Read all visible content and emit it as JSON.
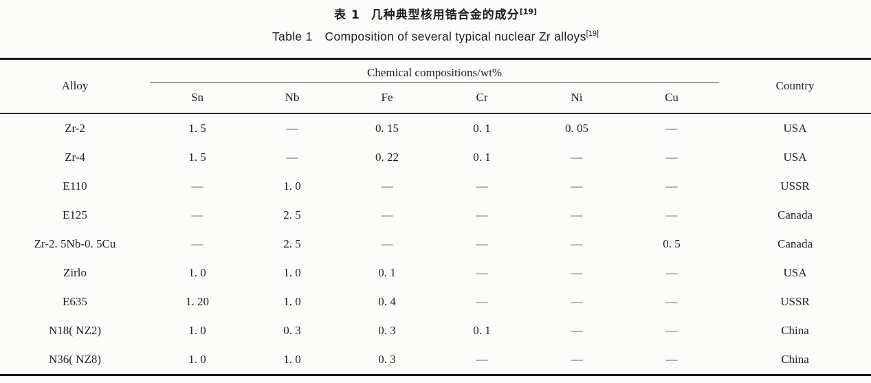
{
  "titles": {
    "zh": {
      "label": "表 1",
      "text": "几种典型核用锆合金的成分",
      "ref": "[19]"
    },
    "en": {
      "label": "Table 1",
      "text": "Composition of several typical nuclear Zr alloys",
      "ref": "[19]"
    }
  },
  "table": {
    "col_alloy": "Alloy",
    "chem_group": "Chemical compositions/wt%",
    "chem_cols": [
      "Sn",
      "Nb",
      "Fe",
      "Cr",
      "Ni",
      "Cu"
    ],
    "col_country": "Country",
    "rows": [
      {
        "alloy": "Zr-2",
        "values": [
          "1. 5",
          "—",
          "0. 15",
          "0. 1",
          "0. 05",
          "—"
        ],
        "country": "USA"
      },
      {
        "alloy": "Zr-4",
        "values": [
          "1. 5",
          "—",
          "0. 22",
          "0. 1",
          "—",
          "—"
        ],
        "country": "USA"
      },
      {
        "alloy": "E110",
        "values": [
          "—",
          "1. 0",
          "—",
          "—",
          "—",
          "—"
        ],
        "country": "USSR"
      },
      {
        "alloy": "E125",
        "values": [
          "—",
          "2. 5",
          "—",
          "—",
          "—",
          "—"
        ],
        "country": "Canada"
      },
      {
        "alloy": "Zr-2. 5Nb-0. 5Cu",
        "values": [
          "—",
          "2. 5",
          "—",
          "—",
          "—",
          "0. 5"
        ],
        "country": "Canada"
      },
      {
        "alloy": "Zirlo",
        "values": [
          "1. 0",
          "1. 0",
          "0. 1",
          "—",
          "—",
          "—"
        ],
        "country": "USA"
      },
      {
        "alloy": "E635",
        "values": [
          "1. 20",
          "1. 0",
          "0. 4",
          "—",
          "—",
          "—"
        ],
        "country": "USSR"
      },
      {
        "alloy": "N18( NZ2)",
        "values": [
          "1. 0",
          "0. 3",
          "0. 3",
          "0. 1",
          "—",
          "—"
        ],
        "country": "China"
      },
      {
        "alloy": "N36( NZ8)",
        "values": [
          "1. 0",
          "1. 0",
          "0. 3",
          "—",
          "—",
          "—"
        ],
        "country": "China"
      }
    ]
  }
}
